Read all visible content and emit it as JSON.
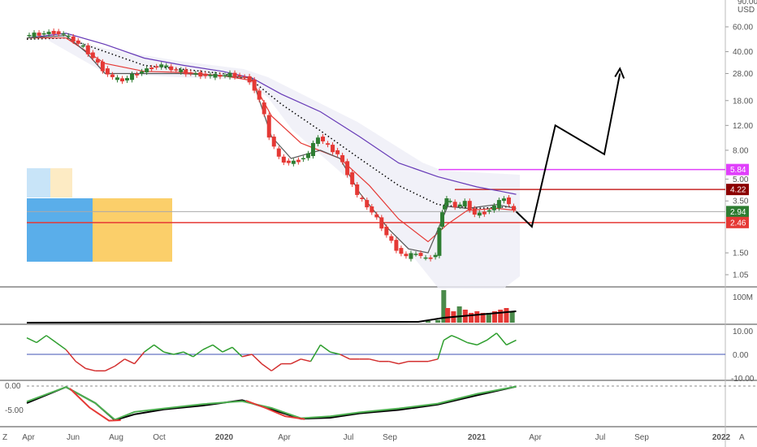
{
  "chart_data": {
    "type": "candlestick",
    "price_axis": {
      "ticks": [
        "90.00",
        "60.00",
        "40.00",
        "28.00",
        "18.00",
        "12.00",
        "8.00",
        "5.00",
        "3.50",
        "1.50",
        "1.05"
      ],
      "unit": "USD",
      "scale": "log"
    },
    "time_axis": {
      "labels": [
        "Apr",
        "Jun",
        "Aug",
        "Oct",
        "2020",
        "Apr",
        "Jul",
        "Sep",
        "2021",
        "Apr",
        "Jul",
        "Sep",
        "2022"
      ],
      "bold": [
        "2020",
        "2021",
        "2022"
      ]
    },
    "price_tags": [
      {
        "value": "5.84",
        "color": "#e040fb"
      },
      {
        "value": "4.22",
        "color": "#8b0000"
      },
      {
        "value": "2.94",
        "color": "#2e7d32"
      },
      {
        "value": "2.46",
        "color": "#e53935"
      }
    ],
    "horizontal_lines": [
      {
        "value": 5.84,
        "color": "#e040fb"
      },
      {
        "value": 4.22,
        "color": "#c62828"
      },
      {
        "value": 2.94,
        "color": "#aaaaaa"
      },
      {
        "value": 2.46,
        "color": "#e53935"
      }
    ],
    "volume_axis": {
      "ticks": [
        "100M"
      ]
    },
    "oscillator_axis": {
      "ticks": [
        "10.00",
        "0.00",
        "-10.00"
      ]
    },
    "macd_axis": {
      "ticks": [
        "0.00",
        "-5.00"
      ]
    },
    "corner_labels": {
      "left": "Z",
      "right": "A"
    },
    "price_path": [
      [
        0.0,
        52
      ],
      [
        0.5,
        53
      ],
      [
        1.0,
        54
      ],
      [
        1.5,
        55
      ],
      [
        2.0,
        53
      ],
      [
        2.5,
        48
      ],
      [
        3.0,
        43
      ],
      [
        3.5,
        36
      ],
      [
        4.0,
        30
      ],
      [
        4.5,
        26
      ],
      [
        5.0,
        25
      ],
      [
        5.5,
        27
      ],
      [
        6.0,
        29
      ],
      [
        6.5,
        31
      ],
      [
        7.0,
        32
      ],
      [
        7.5,
        30
      ],
      [
        8.0,
        29
      ],
      [
        8.5,
        28
      ],
      [
        9.0,
        27.5
      ],
      [
        9.5,
        27
      ],
      [
        10.0,
        27
      ],
      [
        10.5,
        27.5
      ],
      [
        11.0,
        27
      ],
      [
        11.5,
        25
      ],
      [
        12.0,
        18
      ],
      [
        12.5,
        10
      ],
      [
        13.0,
        7
      ],
      [
        13.5,
        6.5
      ],
      [
        14.0,
        6.8
      ],
      [
        14.5,
        7.5
      ],
      [
        15.0,
        10
      ],
      [
        15.5,
        8.5
      ],
      [
        16.0,
        7.5
      ],
      [
        16.5,
        5.5
      ],
      [
        17.0,
        3.8
      ],
      [
        17.5,
        3.2
      ],
      [
        18.0,
        2.6
      ],
      [
        18.5,
        2.0
      ],
      [
        19.0,
        1.6
      ],
      [
        19.5,
        1.4
      ],
      [
        20.0,
        1.5
      ],
      [
        20.5,
        1.35
      ],
      [
        21.0,
        1.45
      ],
      [
        21.3,
        3.0
      ],
      [
        21.5,
        3.6
      ],
      [
        22.0,
        3.2
      ],
      [
        22.5,
        3.4
      ],
      [
        23.0,
        2.8
      ],
      [
        23.5,
        2.9
      ],
      [
        24.0,
        3.2
      ],
      [
        24.5,
        3.7
      ],
      [
        25.0,
        2.94
      ]
    ],
    "moving_averages": [
      {
        "color": "#673ab7",
        "points": [
          [
            0.0,
            50
          ],
          [
            2.0,
            54
          ],
          [
            4.0,
            45
          ],
          [
            6.0,
            36
          ],
          [
            8.0,
            32
          ],
          [
            10.0,
            29
          ],
          [
            11.5,
            26
          ],
          [
            13.0,
            20
          ],
          [
            15.0,
            15
          ],
          [
            17.0,
            10
          ],
          [
            19.0,
            6.5
          ],
          [
            21.0,
            5.2
          ],
          [
            23.0,
            4.4
          ],
          [
            24.2,
            4.1
          ],
          [
            25.0,
            3.9
          ]
        ]
      },
      {
        "color": "#000000",
        "dotted": true,
        "points": [
          [
            0.0,
            49
          ],
          [
            2.0,
            50
          ],
          [
            4.0,
            40
          ],
          [
            6.0,
            32
          ],
          [
            8.0,
            30
          ],
          [
            10.0,
            28
          ],
          [
            11.5,
            25
          ],
          [
            13.0,
            17
          ],
          [
            15.0,
            11
          ],
          [
            17.0,
            7
          ],
          [
            19.0,
            4.5
          ],
          [
            21.0,
            3.3
          ],
          [
            23.0,
            3.1
          ],
          [
            25.0,
            3.2
          ]
        ]
      },
      {
        "color": "#e53935",
        "points": [
          [
            0.0,
            50
          ],
          [
            2.0,
            50
          ],
          [
            4.0,
            33
          ],
          [
            6.0,
            29
          ],
          [
            8.0,
            28.5
          ],
          [
            10.0,
            27
          ],
          [
            11.5,
            25
          ],
          [
            12.5,
            14
          ],
          [
            14.0,
            9
          ],
          [
            16.0,
            7
          ],
          [
            17.5,
            4.5
          ],
          [
            19.0,
            2.6
          ],
          [
            20.5,
            1.8
          ],
          [
            21.5,
            2.4
          ],
          [
            22.5,
            3.0
          ],
          [
            24.0,
            3.1
          ],
          [
            25.0,
            3.0
          ]
        ]
      },
      {
        "color": "#555555",
        "points": [
          [
            0.0,
            50
          ],
          [
            2.0,
            52
          ],
          [
            3.0,
            40
          ],
          [
            4.0,
            28
          ],
          [
            6.0,
            28
          ],
          [
            8.0,
            28
          ],
          [
            10.0,
            27
          ],
          [
            11.5,
            26
          ],
          [
            12.5,
            10
          ],
          [
            13.5,
            7
          ],
          [
            15.0,
            8
          ],
          [
            16.0,
            7
          ],
          [
            17.0,
            4
          ],
          [
            18.5,
            2.2
          ],
          [
            19.5,
            1.6
          ],
          [
            20.5,
            1.5
          ],
          [
            21.5,
            3.2
          ],
          [
            22.5,
            3.1
          ],
          [
            24.0,
            3.3
          ],
          [
            25.0,
            3.1
          ]
        ]
      }
    ],
    "projection_path": [
      [
        25.0,
        2.94
      ],
      [
        25.8,
        2.3
      ],
      [
        27.0,
        12.0
      ],
      [
        29.5,
        7.5
      ],
      [
        30.3,
        28.0
      ]
    ],
    "volume": [
      {
        "i": 20.5,
        "v": 0.05,
        "up": true
      },
      {
        "i": 21.0,
        "v": 0.08,
        "up": true
      },
      {
        "i": 21.3,
        "v": 1.0,
        "up": true
      },
      {
        "i": 21.5,
        "v": 0.45,
        "up": false
      },
      {
        "i": 21.8,
        "v": 0.35,
        "up": false
      },
      {
        "i": 22.1,
        "v": 0.5,
        "up": true
      },
      {
        "i": 22.4,
        "v": 0.4,
        "up": false
      },
      {
        "i": 22.7,
        "v": 0.3,
        "up": false
      },
      {
        "i": 23.0,
        "v": 0.35,
        "up": false
      },
      {
        "i": 23.3,
        "v": 0.3,
        "up": false
      },
      {
        "i": 23.6,
        "v": 0.3,
        "up": true
      },
      {
        "i": 23.9,
        "v": 0.35,
        "up": false
      },
      {
        "i": 24.2,
        "v": 0.4,
        "up": false
      },
      {
        "i": 24.5,
        "v": 0.45,
        "up": false
      },
      {
        "i": 24.8,
        "v": 0.35,
        "up": true
      }
    ],
    "oscillator": [
      [
        0,
        7
      ],
      [
        0.5,
        5
      ],
      [
        1,
        8
      ],
      [
        1.5,
        5
      ],
      [
        2,
        2
      ],
      [
        2.5,
        -3
      ],
      [
        3,
        -6
      ],
      [
        3.5,
        -7
      ],
      [
        4,
        -7
      ],
      [
        4.5,
        -5
      ],
      [
        5,
        -2
      ],
      [
        5.5,
        -4
      ],
      [
        6,
        1
      ],
      [
        6.5,
        4
      ],
      [
        7,
        1
      ],
      [
        7.5,
        0
      ],
      [
        8,
        1
      ],
      [
        8.5,
        -1
      ],
      [
        9,
        2
      ],
      [
        9.5,
        4
      ],
      [
        10,
        1
      ],
      [
        10.5,
        3
      ],
      [
        11,
        -1
      ],
      [
        11.5,
        0
      ],
      [
        12,
        -4
      ],
      [
        12.5,
        -7
      ],
      [
        13,
        -4
      ],
      [
        13.5,
        -4
      ],
      [
        14,
        -2
      ],
      [
        14.5,
        -3
      ],
      [
        15,
        4
      ],
      [
        15.5,
        1
      ],
      [
        16,
        0
      ],
      [
        16.5,
        -2
      ],
      [
        17,
        -2
      ],
      [
        17.5,
        -2
      ],
      [
        18,
        -3
      ],
      [
        18.5,
        -3
      ],
      [
        19,
        -4
      ],
      [
        19.5,
        -3
      ],
      [
        20,
        -3
      ],
      [
        20.5,
        -3
      ],
      [
        21,
        -2
      ],
      [
        21.3,
        6
      ],
      [
        21.7,
        8
      ],
      [
        22,
        7
      ],
      [
        22.5,
        5
      ],
      [
        23,
        4
      ],
      [
        23.5,
        6
      ],
      [
        24,
        9
      ],
      [
        24.5,
        4
      ],
      [
        25,
        6
      ]
    ],
    "macd": [
      {
        "color": "#000000",
        "points": [
          [
            0,
            -3.5
          ],
          [
            2,
            -0.2
          ],
          [
            3.5,
            -3.5
          ],
          [
            4.5,
            -7.0
          ],
          [
            5.5,
            -5.8
          ],
          [
            7,
            -4.8
          ],
          [
            9,
            -4
          ],
          [
            11,
            -2.9
          ],
          [
            12.5,
            -4.8
          ],
          [
            14,
            -6.7
          ],
          [
            15.5,
            -6.5
          ],
          [
            17,
            -5.6
          ],
          [
            19,
            -4.9
          ],
          [
            21,
            -3.8
          ],
          [
            23,
            -1.9
          ],
          [
            25,
            -0.1
          ]
        ]
      },
      {
        "color": "#4caf50",
        "points": [
          [
            0,
            -3.2
          ],
          [
            2,
            -0.2
          ],
          [
            3.5,
            -3.5
          ],
          [
            4.5,
            -6.9
          ],
          [
            5.5,
            -5.3
          ],
          [
            7,
            -4.6
          ],
          [
            9,
            -3.7
          ],
          [
            11,
            -3.1
          ],
          [
            12.5,
            -4.5
          ],
          [
            14,
            -6.6
          ],
          [
            15.5,
            -6.2
          ],
          [
            17,
            -5.4
          ],
          [
            19,
            -4.6
          ],
          [
            21,
            -3.6
          ],
          [
            23,
            -1.6
          ],
          [
            25,
            -0.1
          ]
        ]
      },
      {
        "color": "#e53935",
        "points": [
          [
            2.2,
            -0.5
          ],
          [
            3.2,
            -4.4
          ],
          [
            4.2,
            -7.1
          ],
          [
            4.8,
            -7.0
          ]
        ]
      },
      {
        "color": "#e53935",
        "points": [
          [
            11.2,
            -3.0
          ],
          [
            12.2,
            -4.5
          ],
          [
            13.2,
            -6.2
          ],
          [
            14.2,
            -6.8
          ]
        ]
      }
    ]
  }
}
